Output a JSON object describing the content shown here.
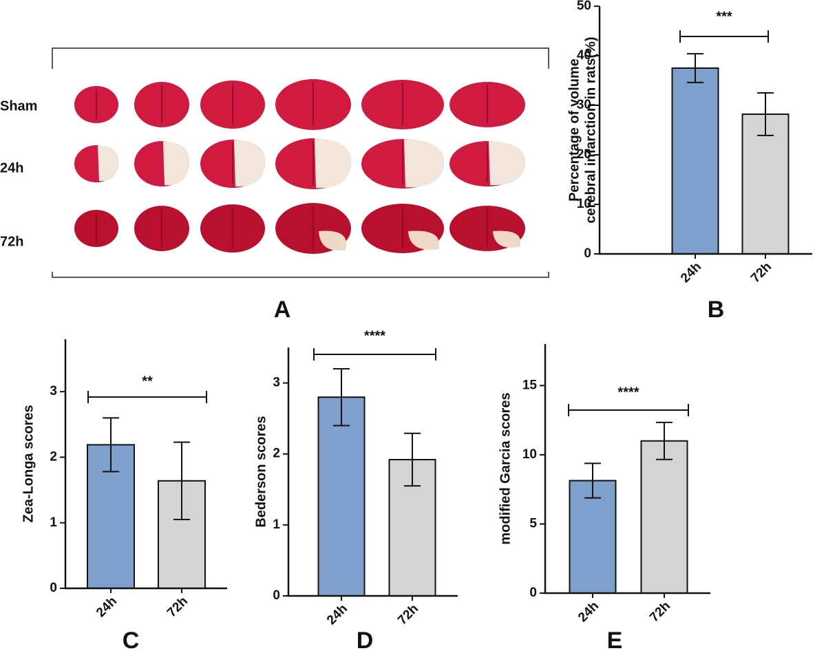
{
  "photo_panel": {
    "panel_label": "A",
    "rows": [
      "Sham",
      "24h",
      "72h"
    ]
  },
  "chart_data": [
    {
      "type": "bar",
      "panel_label": "B",
      "y_label": [
        "Percentage of volume",
        "cerebral infarction in rats(%)"
      ],
      "categories": [
        "24h",
        "72h"
      ],
      "values": [
        37.5,
        28.2
      ],
      "errors": [
        2.9,
        4.3
      ],
      "colors": [
        "#7f9fcc",
        "#d4d4d4"
      ],
      "ylim": [
        0,
        50
      ],
      "yticks": [
        0,
        10,
        20,
        30,
        40,
        50
      ],
      "significance": "***"
    },
    {
      "type": "bar",
      "panel_label": "C",
      "y_label": [
        "Zea-Longa scores"
      ],
      "categories": [
        "24h",
        "72h"
      ],
      "values": [
        2.19,
        1.64
      ],
      "errors": [
        0.41,
        0.59
      ],
      "colors": [
        "#7f9fcc",
        "#d4d4d4"
      ],
      "ylim": [
        0,
        3.8
      ],
      "yticks": [
        0,
        1,
        2,
        3
      ],
      "significance": "**"
    },
    {
      "type": "bar",
      "panel_label": "D",
      "y_label": [
        "Bederson scores"
      ],
      "categories": [
        "24h",
        "72h"
      ],
      "values": [
        2.8,
        1.92
      ],
      "errors": [
        0.4,
        0.37
      ],
      "colors": [
        "#7f9fcc",
        "#d4d4d4"
      ],
      "ylim": [
        0,
        3.5
      ],
      "yticks": [
        0,
        1,
        2,
        3
      ],
      "significance": "****"
    },
    {
      "type": "bar",
      "panel_label": "E",
      "y_label": [
        "modified Garcia scores"
      ],
      "categories": [
        "24h",
        "72h"
      ],
      "values": [
        8.13,
        11.0
      ],
      "errors": [
        1.25,
        1.34
      ],
      "colors": [
        "#7f9fcc",
        "#d4d4d4"
      ],
      "ylim": [
        0,
        18
      ],
      "yticks": [
        0,
        5,
        10,
        15
      ],
      "significance": "****"
    }
  ]
}
